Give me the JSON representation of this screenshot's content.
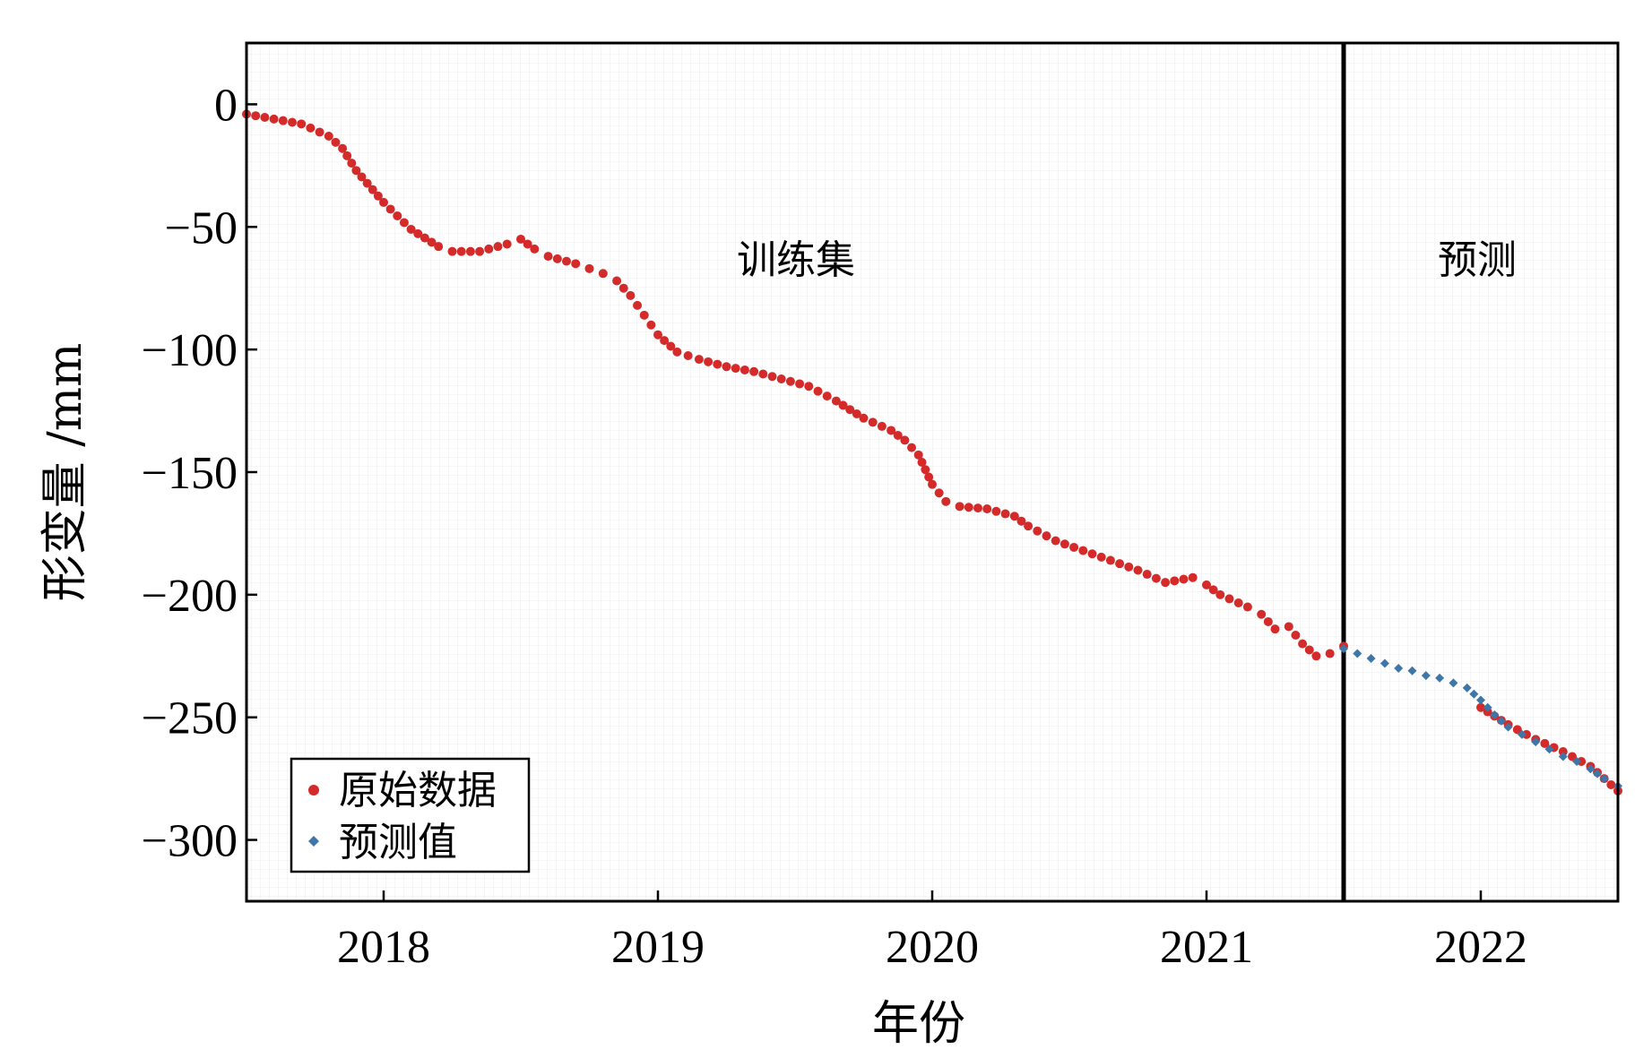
{
  "chart_data": {
    "type": "scatter",
    "title": "",
    "xlabel": "年份",
    "ylabel": "形变量 /mm",
    "xlim": [
      2017.5,
      2022.5
    ],
    "ylim": [
      -325,
      25
    ],
    "x_ticks": [
      2018,
      2019,
      2020,
      2021,
      2022
    ],
    "x_tick_labels": [
      "2018",
      "2019",
      "2020",
      "2021",
      "2022"
    ],
    "y_ticks": [
      0,
      -50,
      -100,
      -150,
      -200,
      -250,
      -300
    ],
    "y_tick_labels": [
      "0",
      "−50",
      "−100",
      "−150",
      "−200",
      "−250",
      "−300"
    ],
    "divider_x": 2021.5,
    "region_labels": [
      "训练集",
      "预测"
    ],
    "legend_position": "bottom-left",
    "series": [
      {
        "name": "原始数据",
        "color": "#d42a2a",
        "marker": "circle",
        "points": [
          [
            2017.5,
            -4
          ],
          [
            2017.6,
            -6
          ],
          [
            2017.7,
            -8
          ],
          [
            2017.8,
            -13
          ],
          [
            2017.85,
            -18
          ],
          [
            2017.9,
            -27
          ],
          [
            2018.0,
            -40
          ],
          [
            2018.1,
            -51
          ],
          [
            2018.2,
            -58
          ],
          [
            2018.25,
            -60
          ],
          [
            2018.35,
            -60
          ],
          [
            2018.45,
            -57
          ],
          [
            2018.5,
            -55
          ],
          [
            2018.55,
            -59
          ],
          [
            2018.6,
            -62
          ],
          [
            2018.7,
            -65
          ],
          [
            2018.75,
            -67
          ],
          [
            2018.8,
            -69
          ],
          [
            2018.85,
            -72
          ],
          [
            2018.9,
            -78
          ],
          [
            2018.95,
            -86
          ],
          [
            2019.0,
            -94
          ],
          [
            2019.07,
            -101
          ],
          [
            2019.15,
            -104
          ],
          [
            2019.25,
            -107
          ],
          [
            2019.35,
            -109
          ],
          [
            2019.45,
            -112
          ],
          [
            2019.55,
            -115
          ],
          [
            2019.65,
            -121
          ],
          [
            2019.75,
            -128
          ],
          [
            2019.85,
            -133
          ],
          [
            2019.9,
            -137
          ],
          [
            2019.95,
            -143
          ],
          [
            2020.0,
            -155
          ],
          [
            2020.05,
            -162
          ],
          [
            2020.1,
            -164
          ],
          [
            2020.2,
            -165
          ],
          [
            2020.3,
            -168
          ],
          [
            2020.35,
            -172
          ],
          [
            2020.45,
            -178
          ],
          [
            2020.55,
            -182
          ],
          [
            2020.65,
            -186
          ],
          [
            2020.75,
            -190
          ],
          [
            2020.85,
            -195
          ],
          [
            2020.95,
            -193
          ],
          [
            2021.0,
            -196
          ],
          [
            2021.05,
            -200
          ],
          [
            2021.15,
            -205
          ],
          [
            2021.2,
            -208
          ],
          [
            2021.25,
            -214
          ],
          [
            2021.3,
            -213
          ],
          [
            2021.35,
            -220
          ],
          [
            2021.4,
            -225
          ],
          [
            2021.45,
            -224
          ],
          [
            2021.5,
            -221
          ],
          [
            2022.0,
            -246
          ],
          [
            2022.1,
            -253
          ],
          [
            2022.2,
            -259
          ],
          [
            2022.3,
            -264
          ],
          [
            2022.4,
            -270
          ],
          [
            2022.5,
            -280
          ]
        ]
      },
      {
        "name": "预测值",
        "color": "#3f76a8",
        "marker": "diamond",
        "points": [
          [
            2021.5,
            -222
          ],
          [
            2021.55,
            -224
          ],
          [
            2021.6,
            -226
          ],
          [
            2021.65,
            -228
          ],
          [
            2021.7,
            -230
          ],
          [
            2021.75,
            -231
          ],
          [
            2021.8,
            -233
          ],
          [
            2021.85,
            -234
          ],
          [
            2021.9,
            -236
          ],
          [
            2021.95,
            -238
          ],
          [
            2022.0,
            -243
          ],
          [
            2022.05,
            -249
          ],
          [
            2022.1,
            -254
          ],
          [
            2022.15,
            -257
          ],
          [
            2022.2,
            -260
          ],
          [
            2022.25,
            -263
          ],
          [
            2022.3,
            -266
          ],
          [
            2022.35,
            -268
          ],
          [
            2022.4,
            -271
          ],
          [
            2022.45,
            -275
          ],
          [
            2022.5,
            -278
          ]
        ]
      }
    ]
  }
}
